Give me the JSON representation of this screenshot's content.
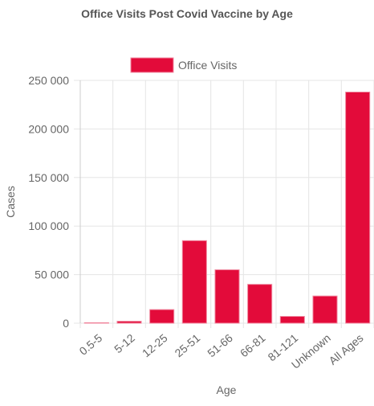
{
  "chart_data": {
    "type": "bar",
    "title": "Office Visits  Post Covid Vaccine by Age",
    "x_label": "Age",
    "y_label": "Cases",
    "categories": [
      "0.5-5",
      "5-12",
      "12-25",
      "25-51",
      "51-66",
      "66-81",
      "81-121",
      "Unknown",
      "All Ages"
    ],
    "series": [
      {
        "name": "Office Visits",
        "color": "#e30b3a",
        "values": [
          500,
          2000,
          14000,
          85000,
          55000,
          40000,
          7000,
          28000,
          238000
        ]
      }
    ],
    "ylim": [
      0,
      250000
    ],
    "yticks": [
      0,
      {
        "value": 50000,
        "label": "50 000"
      },
      {
        "value": 100000,
        "label": "100 000"
      },
      {
        "value": 150000,
        "label": "150 000"
      },
      {
        "value": 200000,
        "label": "200 000"
      },
      {
        "value": 250000,
        "label": "250 000"
      }
    ],
    "grid": true,
    "legend": "top"
  }
}
